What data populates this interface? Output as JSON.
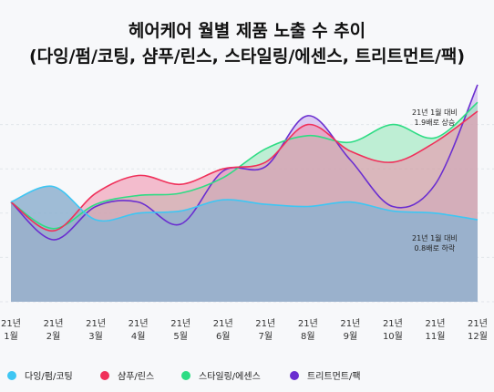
{
  "chart_data": {
    "type": "area",
    "title_line1": "헤어케어 월별 제품 노출 수 추이",
    "title_line2": "(다잉/펌/코팅, 샴푸/린스, 스타일링/에센스, 트리트먼트/팩)",
    "categories": [
      {
        "year": "21년",
        "month": "1월"
      },
      {
        "year": "21년",
        "month": "2월"
      },
      {
        "year": "21년",
        "month": "3월"
      },
      {
        "year": "21년",
        "month": "4월"
      },
      {
        "year": "21년",
        "month": "5월"
      },
      {
        "year": "21년",
        "month": "6월"
      },
      {
        "year": "21년",
        "month": "7월"
      },
      {
        "year": "21년",
        "month": "8월"
      },
      {
        "year": "21년",
        "month": "9월"
      },
      {
        "year": "21년",
        "month": "10월"
      },
      {
        "year": "21년",
        "month": "11월"
      },
      {
        "year": "21년",
        "month": "12월"
      }
    ],
    "ylim": [
      0,
      100
    ],
    "grid": true,
    "legend_position": "bottom",
    "series": [
      {
        "name": "다잉/펌/코팅",
        "color": "#3ec6f3",
        "fill": "#8fb1cf",
        "values": [
          45,
          52,
          37,
          40,
          41,
          46,
          44,
          43,
          45,
          41,
          40,
          37
        ]
      },
      {
        "name": "샴푸/린스",
        "color": "#f0305a",
        "fill": "#f08aa8",
        "values": [
          45,
          32,
          49,
          57,
          53,
          60,
          63,
          80,
          68,
          63,
          72,
          86
        ]
      },
      {
        "name": "스타일링/에센스",
        "color": "#2edc84",
        "fill": "#8fe6b4",
        "values": [
          45,
          33,
          44,
          48,
          49,
          56,
          69,
          75,
          72,
          80,
          74,
          90
        ]
      },
      {
        "name": "트리트먼트/팩",
        "color": "#6a2ed0",
        "fill": "#c6a6ea",
        "values": [
          45,
          28,
          43,
          45,
          35,
          59,
          61,
          84,
          64,
          43,
          53,
          98
        ]
      }
    ],
    "annotations": [
      {
        "line1": "21년 1월 대비",
        "line2": "1.9배로 상승"
      },
      {
        "line1": "21년 1월 대비",
        "line2": "0.8배로 하락"
      }
    ]
  }
}
